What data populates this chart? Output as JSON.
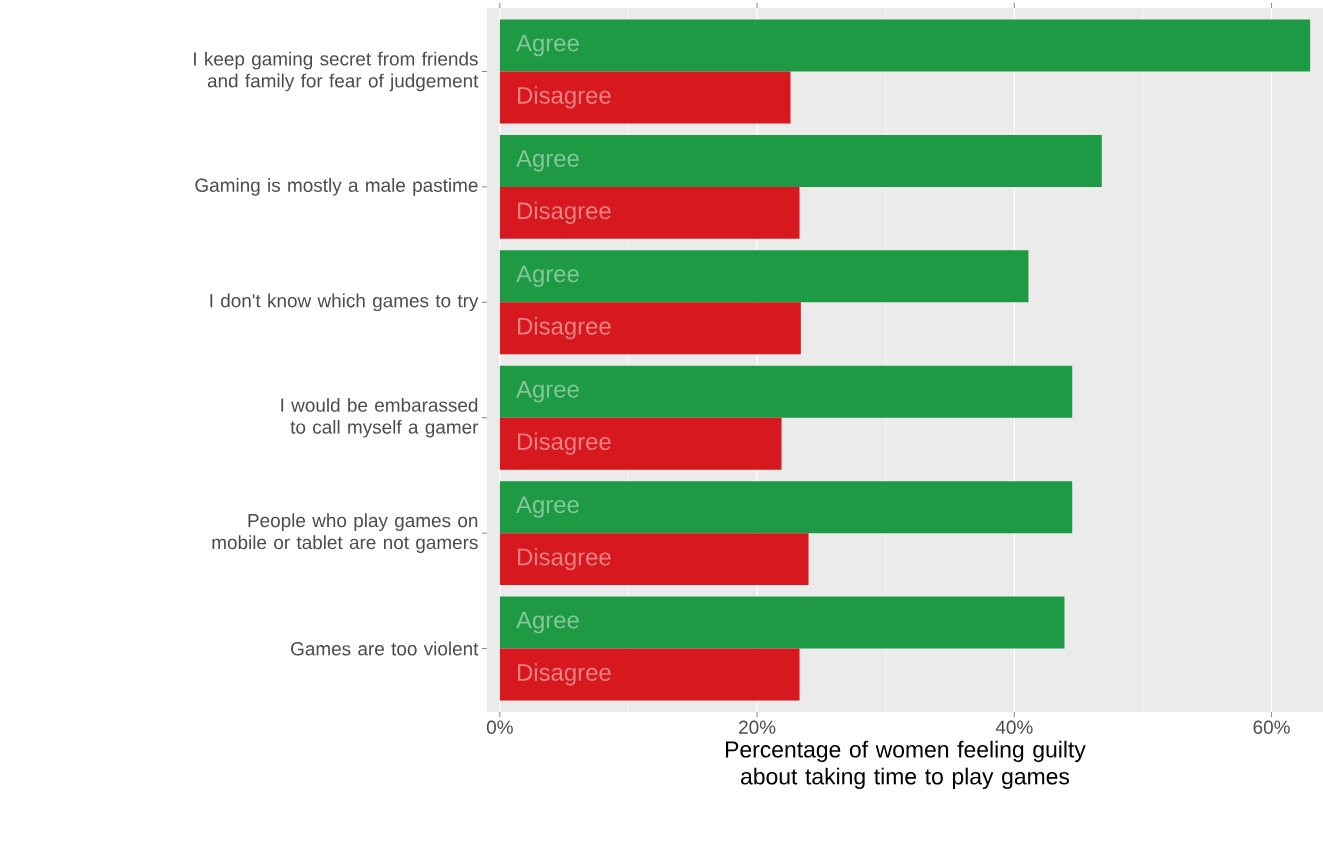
{
  "chart_data": {
    "type": "bar",
    "orientation": "horizontal",
    "xlabel": "Percentage of women feeling guilty about taking time to play games",
    "categories": [
      "I keep gaming secret from friends and family for fear of judgement",
      "Gaming is mostly a male pastime",
      "I don't know which games to try",
      "I would be embarassed to call myself a gamer",
      "People who play games on mobile or tablet are not gamers",
      "Games are too violent"
    ],
    "series": [
      {
        "name": "Agree",
        "color": "#1e9a45",
        "values": [
          63.0,
          46.8,
          41.1,
          44.5,
          44.5,
          43.9
        ]
      },
      {
        "name": "Disagree",
        "color": "#d7191f",
        "values": [
          22.6,
          23.3,
          23.4,
          21.9,
          24.0,
          23.3
        ]
      }
    ],
    "xlim": [
      -1,
      64
    ],
    "xticks": [
      {
        "value": 0,
        "label": "0%"
      },
      {
        "value": 20,
        "label": "20%"
      },
      {
        "value": 40,
        "label": "40%"
      },
      {
        "value": 60,
        "label": "60%"
      }
    ],
    "grid": "x",
    "legend": false
  }
}
